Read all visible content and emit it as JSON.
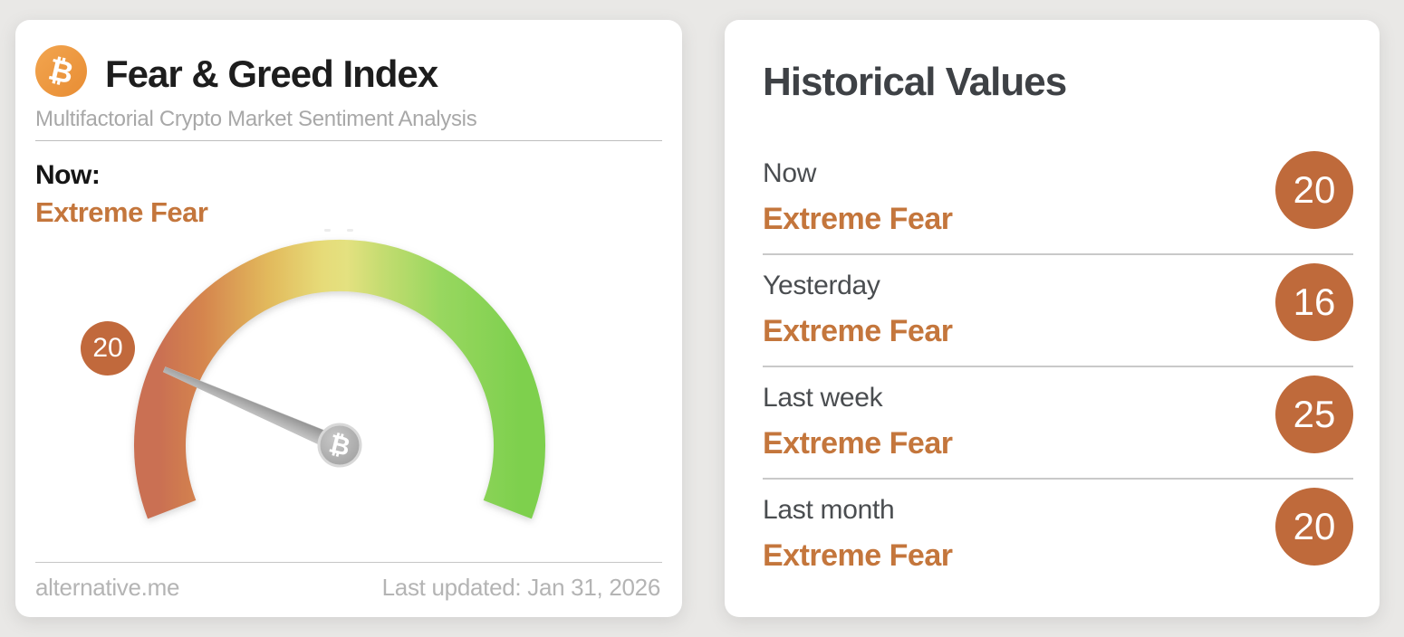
{
  "fng_card": {
    "bitcoin_icon": "₿",
    "title": "Fear & Greed Index",
    "subtitle": "Multifactorial Crypto Market Sentiment Analysis",
    "now_label": "Now:",
    "now_classification": "Extreme Fear",
    "value_badge": "20",
    "source": "alternative.me",
    "last_updated": "Last updated: Jan 31, 2026"
  },
  "historical_card": {
    "title": "Historical Values",
    "rows": [
      {
        "label": "Now",
        "classification": "Extreme Fear",
        "value": "20"
      },
      {
        "label": "Yesterday",
        "classification": "Extreme Fear",
        "value": "16"
      },
      {
        "label": "Last week",
        "classification": "Extreme Fear",
        "value": "25"
      },
      {
        "label": "Last month",
        "classification": "Extreme Fear",
        "value": "20"
      }
    ]
  },
  "chart_data": {
    "type": "gauge",
    "title": "Fear & Greed Index",
    "value": 20,
    "min": 0,
    "max": 100,
    "classification": "Extreme Fear",
    "arc_start_deg": 201,
    "arc_span_deg": 222,
    "color_scale": [
      "#ca7052",
      "#d5854e",
      "#e2b95c",
      "#e6db78",
      "#c4dc70",
      "#98d75f",
      "#7ed04e"
    ]
  },
  "colors": {
    "page_background": "#e9e8e6",
    "classification_orange": "#c4763c",
    "badge_orange": "#bf6a3b",
    "bitcoin_orange": "#ec9843",
    "muted_gray": "#a8a8a8"
  }
}
